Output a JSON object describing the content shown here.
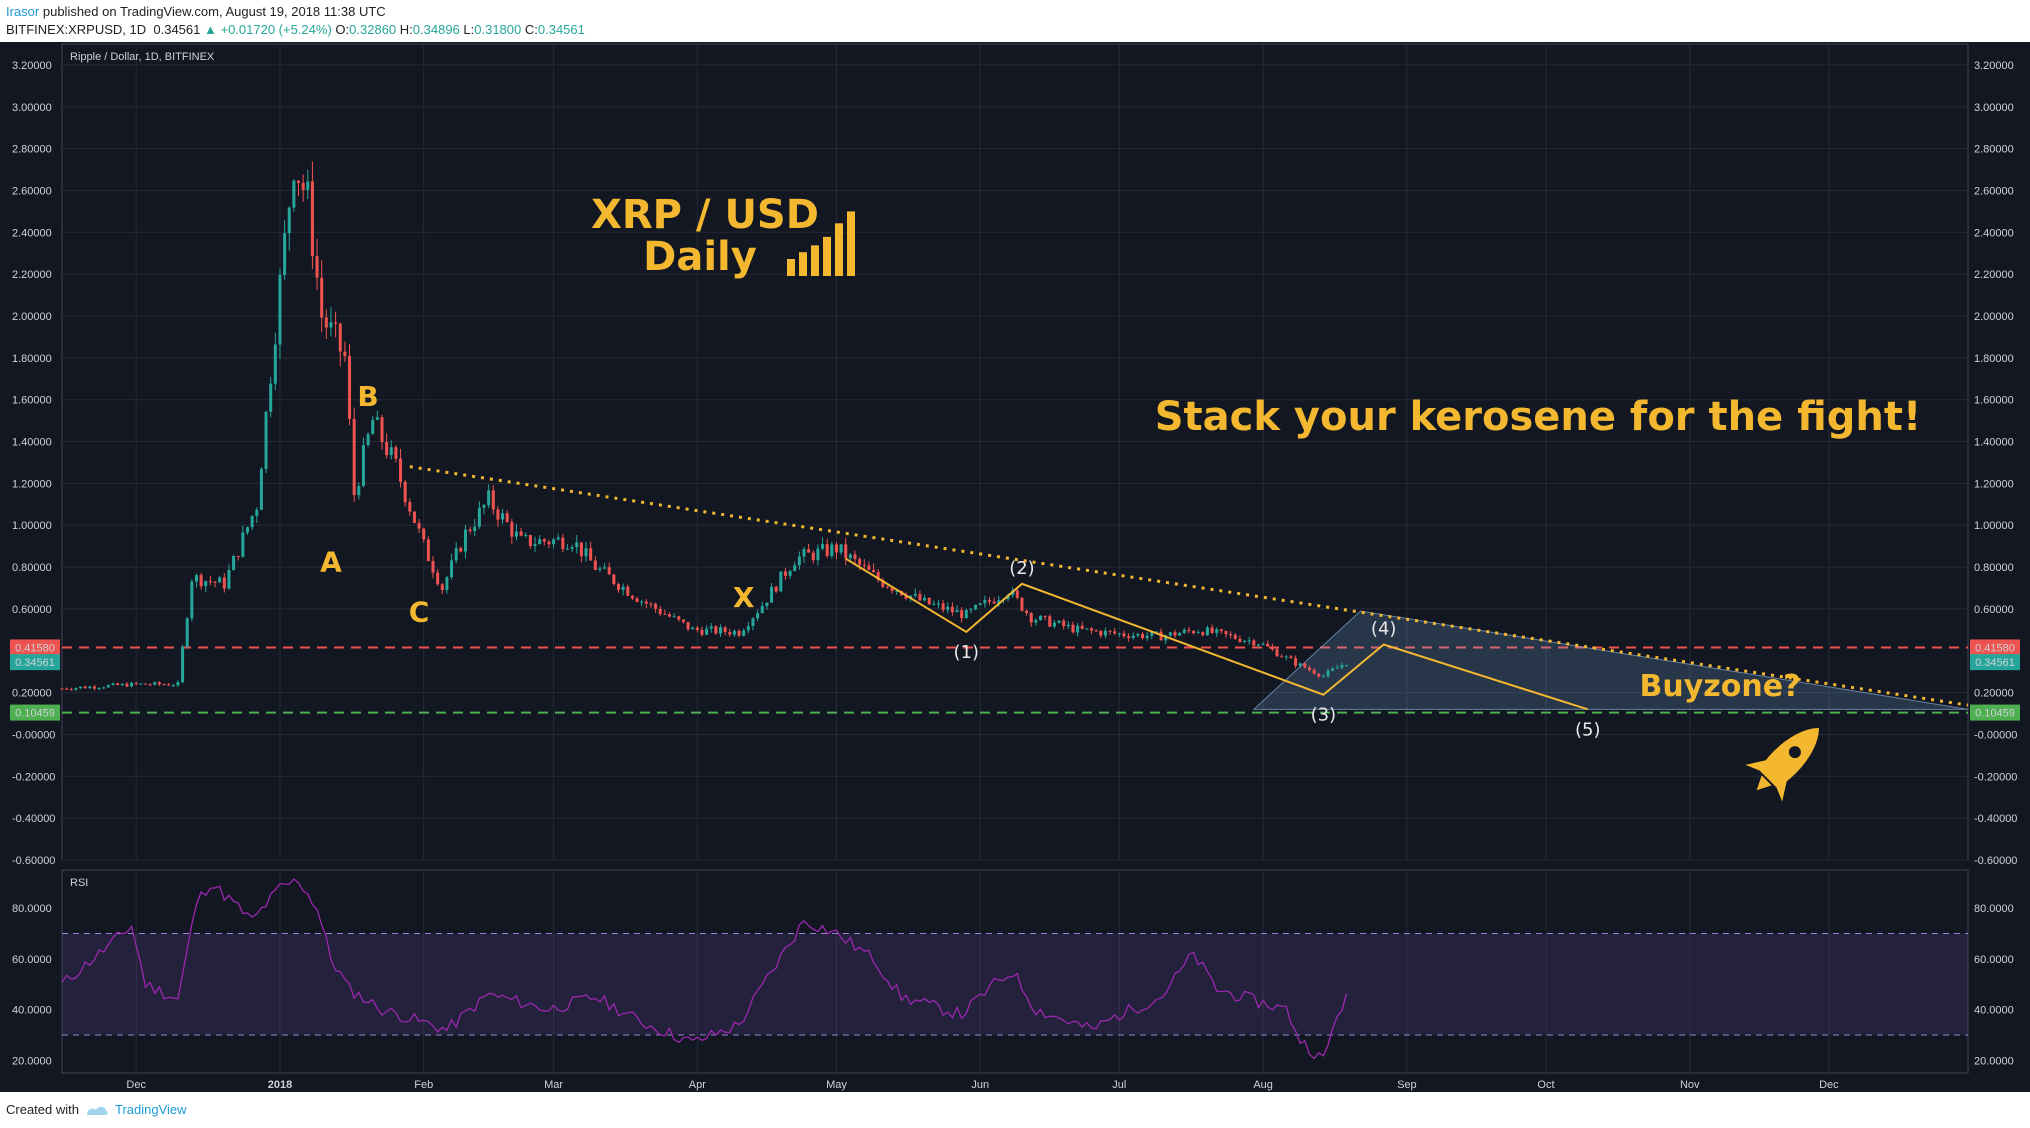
{
  "header": {
    "user": "Irasor",
    "published_text": "published on TradingView.com, August 19, 2018 11:38 UTC",
    "symbol": "BITFINEX:XRPUSD, 1D",
    "price": "0.34561",
    "change": "▲ +0.01720 (+5.24%)",
    "o_label": "O:",
    "o_value": "0.32860",
    "h_label": "H:",
    "h_value": "0.34896",
    "l_label": "L:",
    "l_value": "0.31800",
    "c_label": "C:",
    "c_value": "0.34561"
  },
  "footer": {
    "created_with": "Created with",
    "brand": "TradingView"
  },
  "colors": {
    "background": "#131722",
    "up": "#26a69a",
    "down": "#ef5350",
    "annotation": "#f3b82f",
    "rsi_line": "#9c27b0",
    "resistance": "#ef5350",
    "support": "#4caf50"
  },
  "chart_data": [
    {
      "type": "candlestick",
      "title": "Ripple / Dollar, 1D, BITFINEX",
      "xlabel": "",
      "ylabel": "",
      "ylim": [
        -0.6,
        3.3
      ],
      "y_ticks": [
        "3.20000",
        "3.00000",
        "2.80000",
        "2.60000",
        "2.40000",
        "2.20000",
        "2.00000",
        "1.80000",
        "1.60000",
        "1.40000",
        "1.20000",
        "1.00000",
        "0.80000",
        "0.60000",
        "0.20000",
        "-0.00000",
        "-0.20000",
        "-0.40000",
        "-0.60000"
      ],
      "x_ticks": [
        "Dec",
        "2018",
        "Feb",
        "Mar",
        "Apr",
        "May",
        "Jun",
        "Jul",
        "Aug",
        "Sep",
        "Oct",
        "Nov",
        "Dec"
      ],
      "price_tags": [
        {
          "label": "0.41580",
          "value": 0.4158,
          "kind": "resistance"
        },
        {
          "label": "0.34561",
          "value": 0.34561,
          "kind": "last"
        },
        {
          "label": "0.10459",
          "value": 0.10459,
          "kind": "support"
        }
      ],
      "approx_closes": [
        {
          "date": "2017-11-15",
          "close": 0.22
        },
        {
          "date": "2017-12-01",
          "close": 0.24
        },
        {
          "date": "2017-12-10",
          "close": 0.24
        },
        {
          "date": "2017-12-13",
          "close": 0.75
        },
        {
          "date": "2017-12-20",
          "close": 0.72
        },
        {
          "date": "2017-12-27",
          "close": 1.1
        },
        {
          "date": "2017-12-31",
          "close": 1.95
        },
        {
          "date": "2018-01-04",
          "close": 2.75
        },
        {
          "date": "2018-01-07",
          "close": 2.55
        },
        {
          "date": "2018-01-10",
          "close": 2.0
        },
        {
          "date": "2018-01-15",
          "close": 1.8
        },
        {
          "date": "2018-01-17",
          "close": 1.15
        },
        {
          "date": "2018-01-21",
          "close": 1.5
        },
        {
          "date": "2018-01-26",
          "close": 1.28
        },
        {
          "date": "2018-02-01",
          "close": 0.9
        },
        {
          "date": "2018-02-05",
          "close": 0.7
        },
        {
          "date": "2018-02-10",
          "close": 0.96
        },
        {
          "date": "2018-02-15",
          "close": 1.12
        },
        {
          "date": "2018-02-22",
          "close": 0.92
        },
        {
          "date": "2018-03-05",
          "close": 0.93
        },
        {
          "date": "2018-03-10",
          "close": 0.8
        },
        {
          "date": "2018-03-20",
          "close": 0.64
        },
        {
          "date": "2018-03-31",
          "close": 0.5
        },
        {
          "date": "2018-04-10",
          "close": 0.49
        },
        {
          "date": "2018-04-15",
          "close": 0.62
        },
        {
          "date": "2018-04-22",
          "close": 0.84
        },
        {
          "date": "2018-05-01",
          "close": 0.89
        },
        {
          "date": "2018-05-10",
          "close": 0.74
        },
        {
          "date": "2018-05-20",
          "close": 0.63
        },
        {
          "date": "2018-05-29",
          "close": 0.57
        },
        {
          "date": "2018-06-07",
          "close": 0.69
        },
        {
          "date": "2018-06-12",
          "close": 0.56
        },
        {
          "date": "2018-06-22",
          "close": 0.5
        },
        {
          "date": "2018-07-01",
          "close": 0.48
        },
        {
          "date": "2018-07-10",
          "close": 0.47
        },
        {
          "date": "2018-07-18",
          "close": 0.5
        },
        {
          "date": "2018-07-31",
          "close": 0.44
        },
        {
          "date": "2018-08-08",
          "close": 0.34
        },
        {
          "date": "2018-08-14",
          "close": 0.28
        },
        {
          "date": "2018-08-19",
          "close": 0.34561
        }
      ],
      "drawings": {
        "trendline": [
          {
            "date": "2018-01-29",
            "price": 1.28
          },
          {
            "date": "2018-12-31",
            "price": 0.14
          }
        ],
        "wave_path": [
          {
            "label": "",
            "date": "2018-05-03",
            "price": 0.84
          },
          {
            "label": "(1)",
            "date": "2018-05-29",
            "price": 0.49
          },
          {
            "label": "(2)",
            "date": "2018-06-10",
            "price": 0.72
          },
          {
            "label": "(3)",
            "date": "2018-08-14",
            "price": 0.19
          },
          {
            "label": "(4)",
            "date": "2018-08-27",
            "price": 0.43
          },
          {
            "label": "(5)",
            "date": "2018-10-10",
            "price": 0.12
          }
        ],
        "zone": [
          {
            "date": "2018-07-30",
            "price": 0.12
          },
          {
            "date": "2018-08-22",
            "price": 0.59
          },
          {
            "date": "2018-12-31",
            "price": 0.12
          }
        ],
        "letters": [
          {
            "label": "A",
            "date": "2018-01-12",
            "price": 0.78
          },
          {
            "label": "B",
            "date": "2018-01-20",
            "price": 1.57
          },
          {
            "label": "C",
            "date": "2018-01-31",
            "price": 0.54
          },
          {
            "label": "X",
            "date": "2018-04-11",
            "price": 0.61
          }
        ],
        "heading_line1": "XRP / USD",
        "heading_line2": "Daily",
        "slogan": "Stack your kerosene for the fight!",
        "buyzone": "Buyzone?"
      }
    },
    {
      "type": "line",
      "title": "RSI",
      "ylim": [
        15,
        95
      ],
      "y_ticks": [
        "80.0000",
        "60.0000",
        "40.0000",
        "20.0000"
      ],
      "bands": [
        70,
        30
      ],
      "approx_values": [
        {
          "date": "2017-11-15",
          "value": 50
        },
        {
          "date": "2017-11-25",
          "value": 65
        },
        {
          "date": "2017-11-30",
          "value": 73
        },
        {
          "date": "2017-12-03",
          "value": 50
        },
        {
          "date": "2017-12-10",
          "value": 44
        },
        {
          "date": "2017-12-14",
          "value": 82
        },
        {
          "date": "2017-12-17",
          "value": 90
        },
        {
          "date": "2017-12-22",
          "value": 82
        },
        {
          "date": "2017-12-26",
          "value": 75
        },
        {
          "date": "2018-01-01",
          "value": 88
        },
        {
          "date": "2018-01-05",
          "value": 91
        },
        {
          "date": "2018-01-09",
          "value": 80
        },
        {
          "date": "2018-01-12",
          "value": 60
        },
        {
          "date": "2018-01-16",
          "value": 48
        },
        {
          "date": "2018-01-23",
          "value": 40
        },
        {
          "date": "2018-02-06",
          "value": 32
        },
        {
          "date": "2018-02-15",
          "value": 46
        },
        {
          "date": "2018-02-28",
          "value": 40
        },
        {
          "date": "2018-03-10",
          "value": 45
        },
        {
          "date": "2018-03-20",
          "value": 35
        },
        {
          "date": "2018-03-31",
          "value": 27
        },
        {
          "date": "2018-04-10",
          "value": 34
        },
        {
          "date": "2018-04-16",
          "value": 52
        },
        {
          "date": "2018-04-24",
          "value": 75
        },
        {
          "date": "2018-05-01",
          "value": 70
        },
        {
          "date": "2018-05-09",
          "value": 60
        },
        {
          "date": "2018-05-15",
          "value": 45
        },
        {
          "date": "2018-05-28",
          "value": 38
        },
        {
          "date": "2018-06-04",
          "value": 50
        },
        {
          "date": "2018-06-08",
          "value": 55
        },
        {
          "date": "2018-06-13",
          "value": 40
        },
        {
          "date": "2018-06-25",
          "value": 32
        },
        {
          "date": "2018-07-01",
          "value": 38
        },
        {
          "date": "2018-07-10",
          "value": 45
        },
        {
          "date": "2018-07-17",
          "value": 62
        },
        {
          "date": "2018-07-22",
          "value": 48
        },
        {
          "date": "2018-07-31",
          "value": 43
        },
        {
          "date": "2018-08-06",
          "value": 40
        },
        {
          "date": "2018-08-09",
          "value": 28
        },
        {
          "date": "2018-08-14",
          "value": 20
        },
        {
          "date": "2018-08-17",
          "value": 38
        },
        {
          "date": "2018-08-19",
          "value": 45
        }
      ]
    }
  ]
}
